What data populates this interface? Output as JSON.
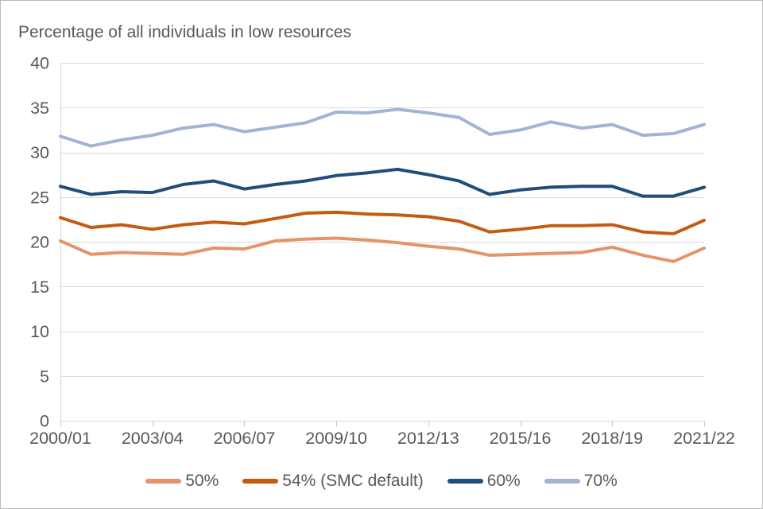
{
  "window": {
    "background": "#ffffff",
    "border_color": "#bdbdbd"
  },
  "chart_data": {
    "type": "line",
    "title": "Percentage of all individuals in low resources",
    "title_color": "#595959",
    "axis_text_color": "#595959",
    "gridline_color": "#d9d9d9",
    "grid": true,
    "legend_position": "bottom",
    "xlabel": "",
    "ylabel": "",
    "ylim": [
      0,
      40
    ],
    "y_ticks": [
      0,
      5,
      10,
      15,
      20,
      25,
      30,
      35,
      40
    ],
    "categories": [
      "2000/01",
      "2001/02",
      "2002/03",
      "2003/04",
      "2004/05",
      "2005/06",
      "2006/07",
      "2007/08",
      "2008/09",
      "2009/10",
      "2010/11",
      "2011/12",
      "2012/13",
      "2013/14",
      "2014/15",
      "2015/16",
      "2016/17",
      "2017/18",
      "2018/19",
      "2019/20",
      "2020/21",
      "2021/22"
    ],
    "x_tick_labels": [
      "2000/01",
      "2003/04",
      "2006/07",
      "2009/10",
      "2012/13",
      "2015/16",
      "2018/19",
      "2021/22"
    ],
    "x_tick_indices": [
      0,
      3,
      6,
      9,
      12,
      15,
      18,
      21
    ],
    "series": [
      {
        "name": "50%",
        "color": "#E59369",
        "values": [
          20.1,
          18.6,
          18.8,
          18.7,
          18.6,
          19.3,
          19.2,
          20.1,
          20.3,
          20.4,
          20.2,
          19.9,
          19.5,
          19.2,
          18.5,
          18.6,
          18.7,
          18.8,
          19.4,
          18.5,
          17.8,
          19.3
        ]
      },
      {
        "name": "54% (SMC default)",
        "color": "#C55A11",
        "values": [
          22.7,
          21.6,
          21.9,
          21.4,
          21.9,
          22.2,
          22.0,
          22.6,
          23.2,
          23.3,
          23.1,
          23.0,
          22.8,
          22.3,
          21.1,
          21.4,
          21.8,
          21.8,
          21.9,
          21.1,
          20.9,
          22.4
        ]
      },
      {
        "name": "60%",
        "color": "#1F4E79",
        "values": [
          26.2,
          25.3,
          25.6,
          25.5,
          26.4,
          26.8,
          25.9,
          26.4,
          26.8,
          27.4,
          27.7,
          28.1,
          27.5,
          26.8,
          25.3,
          25.8,
          26.1,
          26.2,
          26.2,
          25.1,
          25.1,
          26.1
        ]
      },
      {
        "name": "70%",
        "color": "#A3B3D4",
        "values": [
          31.8,
          30.7,
          31.4,
          31.9,
          32.7,
          33.1,
          32.3,
          32.8,
          33.3,
          34.5,
          34.4,
          34.8,
          34.4,
          33.9,
          32.0,
          32.5,
          33.4,
          32.7,
          33.1,
          31.9,
          32.1,
          33.1
        ]
      }
    ]
  }
}
